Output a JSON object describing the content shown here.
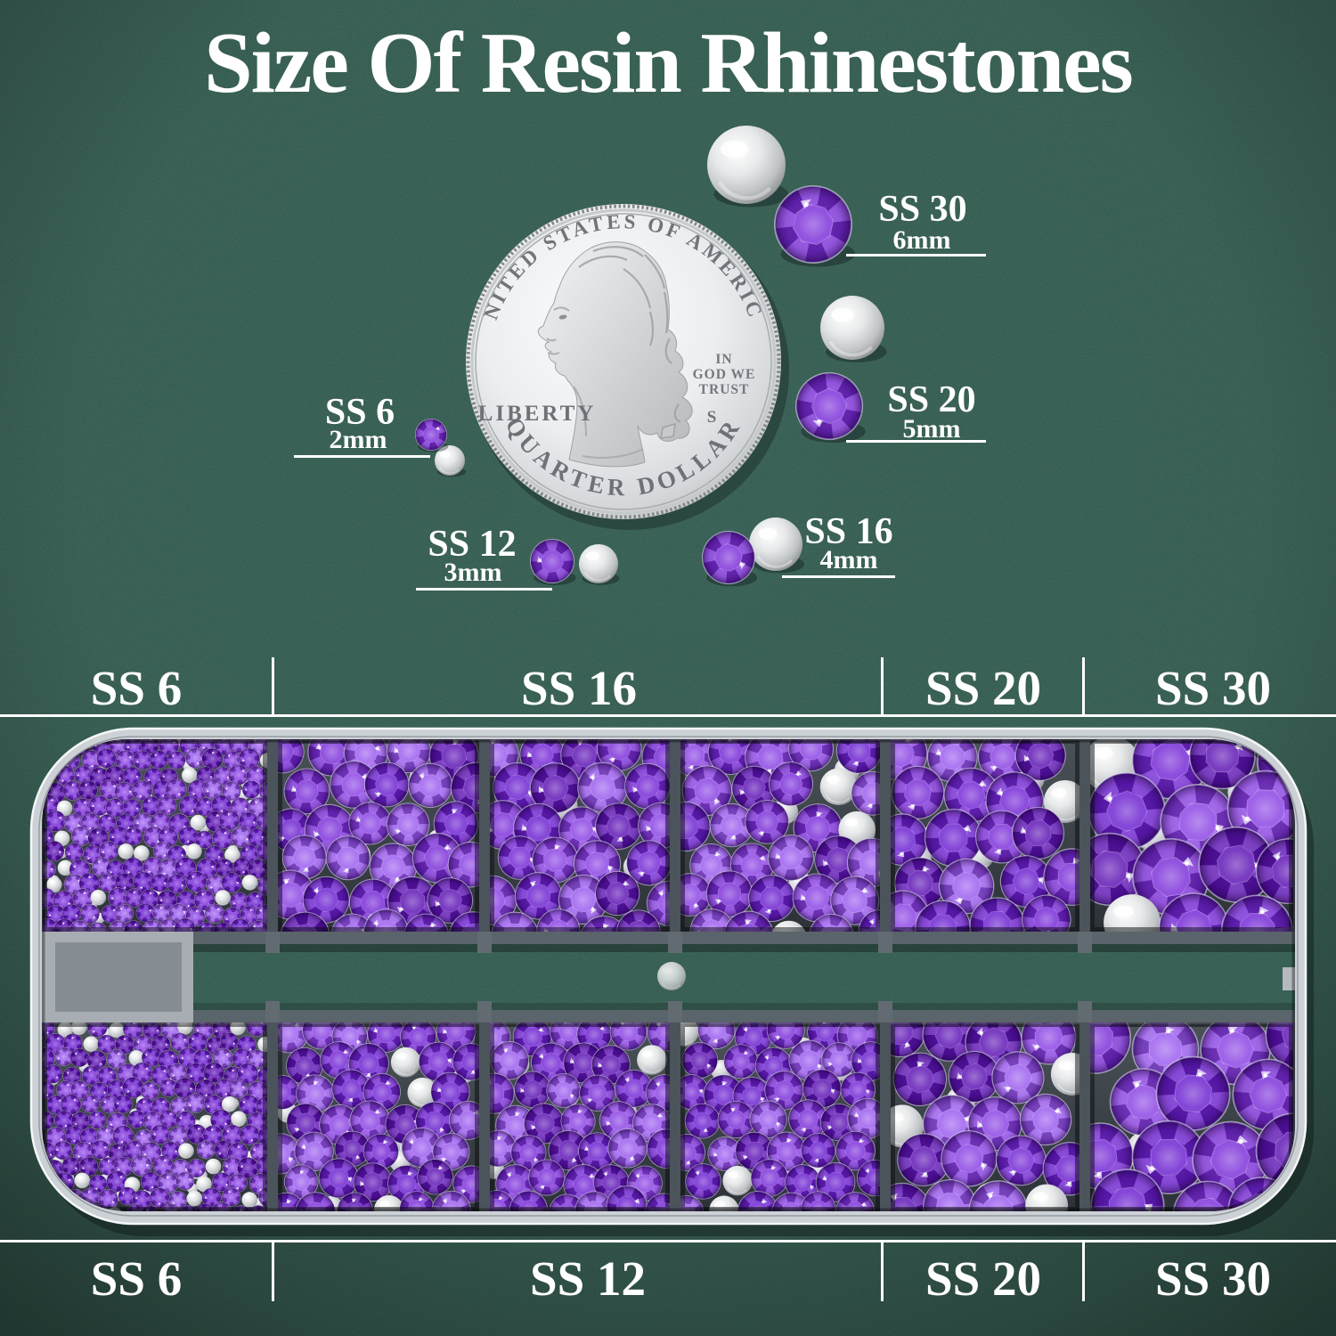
{
  "title": "Size Of Resin Rhinestones",
  "coin": {
    "top_text": "UNITED STATES OF AMERICA",
    "liberty": "LIBERTY",
    "motto": [
      "IN",
      "GOD WE",
      "TRUST"
    ],
    "mint_mark": "S",
    "bottom_text": "QUARTER DOLLAR"
  },
  "callouts": [
    {
      "id": "ss6",
      "label": "SS 6",
      "size": "2mm"
    },
    {
      "id": "ss12",
      "label": "SS 12",
      "size": "3mm"
    },
    {
      "id": "ss16",
      "label": "SS 16",
      "size": "4mm"
    },
    {
      "id": "ss20",
      "label": "SS 20",
      "size": "5mm"
    },
    {
      "id": "ss30",
      "label": "SS 30",
      "size": "6mm"
    }
  ],
  "tray_headers": {
    "top": [
      "SS 6",
      "SS 16",
      "SS 20",
      "SS 30"
    ],
    "bottom": [
      "SS 6",
      "SS 12",
      "SS 20",
      "SS 30"
    ]
  },
  "colors": {
    "felt": "#315549",
    "text": "#ffffff",
    "stone": "#7b2fd9",
    "stone_palette": [
      "#6b1fd0",
      "#7b2fd9",
      "#8a42e4",
      "#5c12b4",
      "#9a5bef",
      "#7427d6"
    ],
    "silver": "#d7dadd",
    "tray_rim": "#ccd1d5",
    "tray_frame": "#4b545b"
  }
}
